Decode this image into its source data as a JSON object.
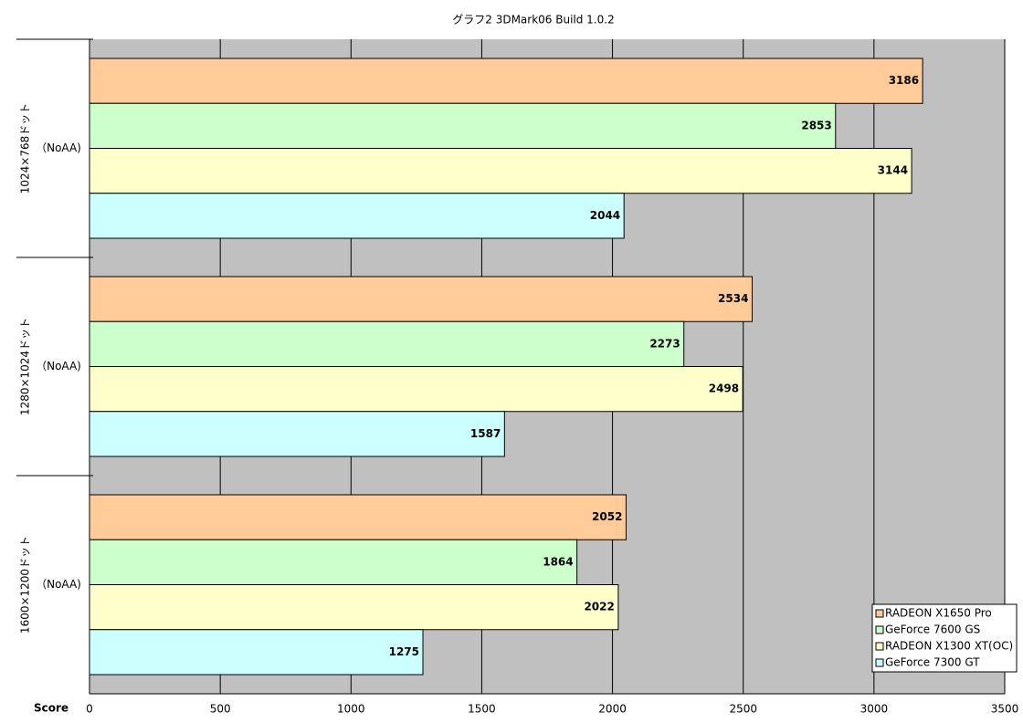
{
  "chart_data": {
    "type": "bar",
    "orientation": "horizontal",
    "title": "グラフ2  3DMark06 Build 1.0.2",
    "x_label": "Score",
    "categories": [
      "1024×768ドット",
      "1280×1024ドット",
      "1600×1200ドット"
    ],
    "category_notes": [
      "（NoAA)",
      "（NoAA)",
      "（NoAA)"
    ],
    "series": [
      {
        "name": "RADEON X1650 Pro",
        "color": "#ffcc99",
        "values": [
          3186,
          2534,
          2052
        ]
      },
      {
        "name": "GeForce 7600 GS",
        "color": "#ccffcc",
        "values": [
          2853,
          2273,
          1864
        ]
      },
      {
        "name": "RADEON X1300 XT(OC)",
        "color": "#ffffcc",
        "values": [
          3144,
          2498,
          2022
        ]
      },
      {
        "name": "GeForce 7300 GT",
        "color": "#ccffff",
        "values": [
          2044,
          1587,
          1275
        ]
      }
    ],
    "xlim": [
      0,
      3500
    ],
    "xticks": [
      0,
      500,
      1000,
      1500,
      2000,
      2500,
      3000,
      3500
    ],
    "grid": true,
    "plot_background": "#c0c0c0",
    "legend": "bottom-right"
  }
}
